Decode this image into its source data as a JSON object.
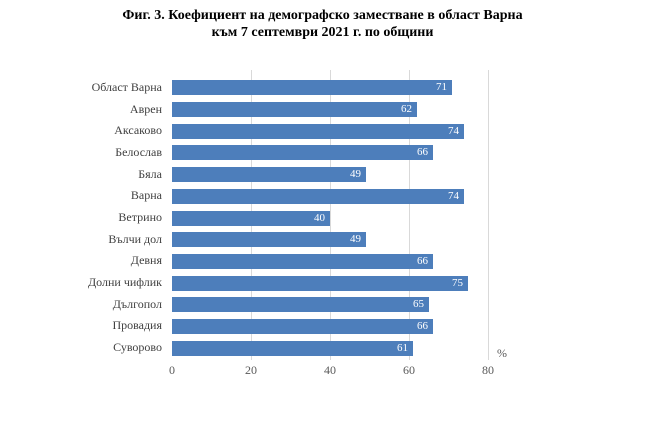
{
  "title": {
    "line1": "Фиг. 3. Коефициент на демографско заместване в област Варна",
    "line2": "към 7 септември 2021 г. по общини"
  },
  "chart_data": {
    "type": "bar",
    "orientation": "horizontal",
    "title": "Фиг. 3. Коефициент на демографско заместване в област Варна към 7 септември 2021 г. по общини",
    "categories": [
      "Област Варна",
      "Аврен",
      "Аксаково",
      "Белослав",
      "Бяла",
      "Варна",
      "Ветрино",
      "Вълчи дол",
      "Девня",
      "Долни чифлик",
      "Дългопол",
      "Провадия",
      "Суворово"
    ],
    "values": [
      71,
      62,
      74,
      66,
      49,
      74,
      40,
      49,
      66,
      75,
      65,
      66,
      61
    ],
    "xlabel": "%",
    "ylabel": "",
    "xlim": [
      0,
      80
    ],
    "xticks": [
      0,
      20,
      40,
      60,
      80
    ],
    "grid": "vertical-gridlines-on",
    "legend": "none",
    "bar_color": "#4d7ebb",
    "gridline_color": "#d9d9d9",
    "value_label_style": "inside-end-white"
  }
}
